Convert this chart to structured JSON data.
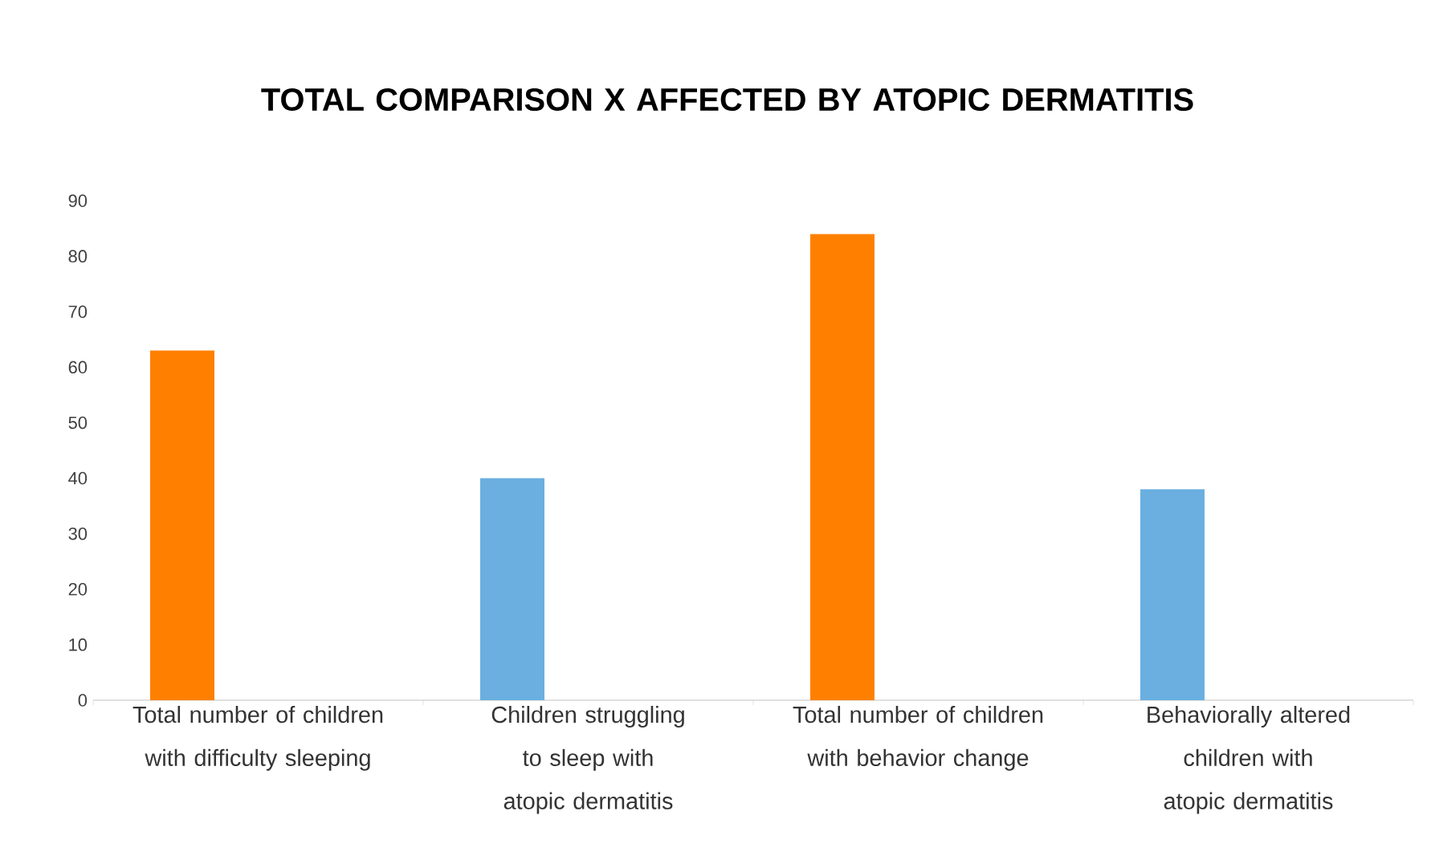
{
  "chart_data": {
    "type": "bar",
    "title": "TOTAL COMPARISON X AFFECTED BY ATOPIC DERMATITIS",
    "categories": [
      "Total number of children with difficulty sleeping",
      "Children struggling to sleep with atopic dermatitis",
      "Total number of children with behavior change",
      "Behaviorally altered children with atopic dermatitis"
    ],
    "values": [
      63,
      40,
      84,
      38
    ],
    "colors": [
      "#ff8000",
      "#6aafe0",
      "#ff8000",
      "#6aafe0"
    ],
    "ylim": [
      0,
      90
    ],
    "yticks": [
      0,
      10,
      20,
      30,
      40,
      50,
      60,
      70,
      80,
      90
    ],
    "grid": false
  }
}
